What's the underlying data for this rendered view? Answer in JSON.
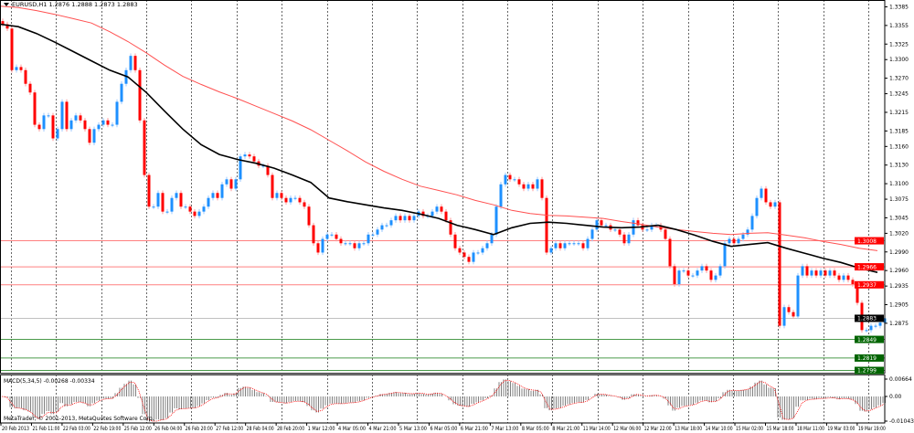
{
  "header": {
    "symbol": "EURUSD,H1",
    "ohlc": "1.2876 1.2888 1.2873 1.2883"
  },
  "macd_panel": {
    "label": "MACD(5,34,5) -0.00268 -0.00334",
    "axis_ticks": [
      "0.00664",
      "0.00",
      "-0.01043"
    ]
  },
  "copyright": "MetaTrader, © 2001-2013, MetaQuotes Software Corp.",
  "colors": {
    "bull": "#1e90ff",
    "bear": "#ff0000",
    "ma_fast": "#000000",
    "ma_slow": "#ff5050",
    "resistance": "#ff0000",
    "support": "#006400",
    "current": "#000000",
    "histogram": "#808080",
    "signal": "#ff0000"
  },
  "chart_data": {
    "type": "candlestick",
    "symbol": "EURUSD",
    "timeframe": "H1",
    "ylim": [
      1.2795,
      1.339
    ],
    "grid": true,
    "y_ticks": [
      "1.3385",
      "1.3355",
      "1.3325",
      "1.3300",
      "1.3270",
      "1.3245",
      "1.3215",
      "1.3185",
      "1.3160",
      "1.3130",
      "1.3100",
      "1.3075",
      "1.3045",
      "1.3020",
      "1.2990",
      "1.2960",
      "1.2935",
      "1.2905",
      "1.2875"
    ],
    "x_ticks": [
      "20 Feb 2013",
      "21 Feb 11:00",
      "22 Feb 03:00",
      "22 Feb 19:00",
      "25 Feb 12:00",
      "26 Feb 04:00",
      "26 Feb 20:00",
      "27 Feb 12:00",
      "28 Feb 04:00",
      "28 Feb 20:00",
      "1 Mar 12:00",
      "4 Mar 05:00",
      "4 Mar 21:00",
      "5 Mar 13:00",
      "6 Mar 05:00",
      "6 Mar 21:00",
      "7 Mar 13:00",
      "8 Mar 05:00",
      "8 Mar 21:00",
      "11 Mar 14:00",
      "12 Mar 06:00",
      "12 Mar 22:00",
      "13 Mar 18:00",
      "14 Mar 10:00",
      "15 Mar 02:00",
      "15 Mar 18:00",
      "18 Mar 11:00",
      "19 Mar 03:00",
      "19 Mar 19:00"
    ],
    "closes": [
      1.3357,
      1.335,
      1.3283,
      1.3288,
      1.3283,
      1.3261,
      1.3247,
      1.3195,
      1.3188,
      1.321,
      1.321,
      1.3173,
      1.3188,
      1.3232,
      1.3188,
      1.3202,
      1.321,
      1.3202,
      1.3188,
      1.3166,
      1.3188,
      1.3195,
      1.3202,
      1.3195,
      1.3195,
      1.3232,
      1.3261,
      1.3283,
      1.3306,
      1.3283,
      1.3202,
      1.3114,
      1.3063,
      1.3063,
      1.3085,
      1.3055,
      1.3055,
      1.3077,
      1.3085,
      1.3063,
      1.3063,
      1.3055,
      1.3048,
      1.3055,
      1.3063,
      1.3077,
      1.3085,
      1.3077,
      1.3099,
      1.3107,
      1.3092,
      1.3107,
      1.3144,
      1.3147,
      1.3144,
      1.3136,
      1.3129,
      1.3129,
      1.3114,
      1.3077,
      1.3085,
      1.3077,
      1.307,
      1.3077,
      1.3077,
      1.307,
      1.3063,
      1.3033,
      1.3004,
      1.2989,
      1.3011,
      1.3018,
      1.3018,
      1.3011,
      1.3004,
      1.3004,
      1.3004,
      1.2996,
      1.3004,
      1.3004,
      1.3018,
      1.3018,
      1.3026,
      1.3033,
      1.3033,
      1.3041,
      1.3048,
      1.3041,
      1.3048,
      1.3041,
      1.3048,
      1.3055,
      1.3048,
      1.3048,
      1.3055,
      1.3063,
      1.3055,
      1.3041,
      1.3018,
      1.2996,
      1.2989,
      1.2982,
      1.2974,
      1.2989,
      1.2989,
      1.2996,
      1.3004,
      1.3018,
      1.3063,
      1.3099,
      1.3114,
      1.3107,
      1.3107,
      1.3099,
      1.3092,
      1.3099,
      1.3092,
      1.3107,
      1.3077,
      1.2989,
      1.2996,
      1.3004,
      1.2996,
      1.3004,
      1.3004,
      1.3004,
      1.3004,
      1.2996,
      1.3011,
      1.3026,
      1.3041,
      1.3033,
      1.3033,
      1.3026,
      1.3026,
      1.3018,
      1.3004,
      1.3018,
      1.3041,
      1.3033,
      1.3026,
      1.3026,
      1.3033,
      1.3033,
      1.3026,
      1.3011,
      1.2967,
      1.2938,
      1.296,
      1.296,
      1.2952,
      1.2952,
      1.296,
      1.2967,
      1.296,
      1.2945,
      1.2952,
      1.2967,
      1.3004,
      1.3011,
      1.3004,
      1.3011,
      1.3018,
      1.3026,
      1.3048,
      1.3077,
      1.3092,
      1.307,
      1.3063,
      1.307,
      1.2871,
      1.2901,
      1.2893,
      1.2886,
      1.2952,
      1.2967,
      1.2952,
      1.296,
      1.2952,
      1.296,
      1.2952,
      1.296,
      1.2952,
      1.2945,
      1.2952,
      1.2945,
      1.2938,
      1.2908,
      1.2864,
      1.2864,
      1.2871,
      1.2871,
      1.2876,
      1.2883
    ],
    "ma_fast": [
      1.3357,
      1.3353,
      1.3342,
      1.3328,
      1.3313,
      1.3298,
      1.3283,
      1.3272,
      1.3247,
      1.3217,
      1.3188,
      1.3163,
      1.3147,
      1.3139,
      1.3133,
      1.3125,
      1.3114,
      1.3102,
      1.3077,
      1.3071,
      1.3066,
      1.3061,
      1.3057,
      1.3051,
      1.3044,
      1.3033,
      1.3026,
      1.3018,
      1.3029,
      1.3036,
      1.3038,
      1.3036,
      1.3033,
      1.303,
      1.3029,
      1.303,
      1.3033,
      1.3026,
      1.3017,
      1.3007,
      1.2999,
      1.3002,
      1.3005,
      1.2996,
      1.2988,
      1.298,
      1.2973,
      1.2964,
      1.2957
    ],
    "ma_slow": [
      1.3386,
      1.3384,
      1.3379,
      1.3373,
      1.3366,
      1.3359,
      1.3345,
      1.3329,
      1.3311,
      1.3291,
      1.3273,
      1.326,
      1.3248,
      1.3237,
      1.3225,
      1.3213,
      1.3201,
      1.3187,
      1.317,
      1.3153,
      1.3135,
      1.312,
      1.3107,
      1.3096,
      1.3089,
      1.3082,
      1.3073,
      1.3066,
      1.3057,
      1.3052,
      1.3049,
      1.3048,
      1.3046,
      1.3044,
      1.3039,
      1.3035,
      1.303,
      1.3026,
      1.3023,
      1.302,
      1.3018,
      1.302,
      1.3021,
      1.3017,
      1.3013,
      1.3007,
      1.3002,
      1.2996,
      1.2992
    ],
    "horizontal_levels": [
      {
        "price": "1.3008",
        "kind": "resistance"
      },
      {
        "price": "1.2966",
        "kind": "resistance"
      },
      {
        "price": "1.2937",
        "kind": "resistance"
      },
      {
        "price": "1.2883",
        "kind": "current"
      },
      {
        "price": "1.2849",
        "kind": "support"
      },
      {
        "price": "1.2819",
        "kind": "support"
      },
      {
        "price": "1.2799",
        "kind": "support"
      }
    ],
    "macd_range": [
      -0.01043,
      0.00664
    ]
  }
}
